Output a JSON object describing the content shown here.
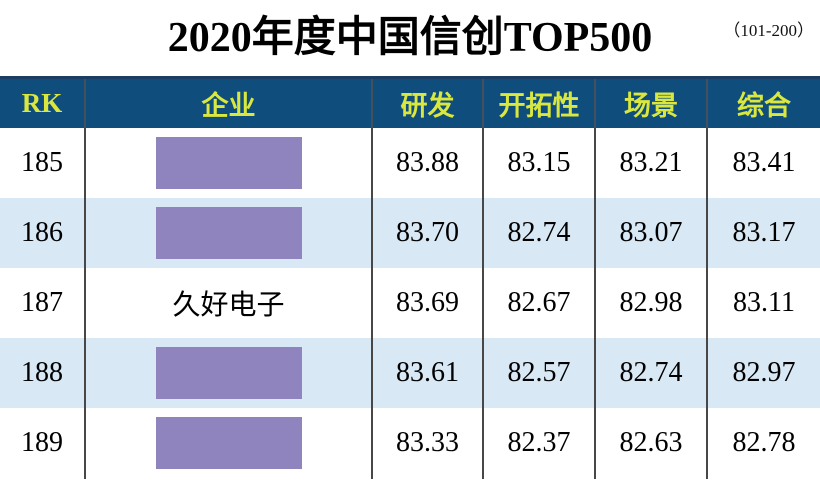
{
  "page": {
    "range_badge": "（101-200）",
    "title": "2020年度中国信创TOP500"
  },
  "colors": {
    "header_bg": "#0f4e7c",
    "header_text": "#d9e73f",
    "header_top_border": "#1c3e63",
    "header_divider": "#44505c",
    "body_divider": "#474747",
    "row_alt_bg": "#d9e8f5",
    "redaction_fill": "#8f84be"
  },
  "table": {
    "columns": [
      {
        "key": "rk",
        "label": "RK"
      },
      {
        "key": "company",
        "label": "企业"
      },
      {
        "key": "rd",
        "label": "研发"
      },
      {
        "key": "pioneer",
        "label": "开拓性"
      },
      {
        "key": "scene",
        "label": "场景"
      },
      {
        "key": "overall",
        "label": "综合"
      }
    ],
    "rows": [
      {
        "rk": "185",
        "company": "",
        "redacted": true,
        "scores": [
          "83.88",
          "83.15",
          "83.21",
          "83.41"
        ]
      },
      {
        "rk": "186",
        "company": "",
        "redacted": true,
        "scores": [
          "83.70",
          "82.74",
          "83.07",
          "83.17"
        ]
      },
      {
        "rk": "187",
        "company": "久好电子",
        "redacted": false,
        "scores": [
          "83.69",
          "82.67",
          "82.98",
          "83.11"
        ]
      },
      {
        "rk": "188",
        "company": "",
        "redacted": true,
        "scores": [
          "83.61",
          "82.57",
          "82.74",
          "82.97"
        ]
      },
      {
        "rk": "189",
        "company": "",
        "redacted": true,
        "scores": [
          "83.33",
          "82.37",
          "82.63",
          "82.78"
        ]
      }
    ]
  },
  "chart_data": {
    "type": "table",
    "title": "2020年度中国信创TOP500",
    "subtitle": "（101-200）",
    "columns": [
      "RK",
      "企业",
      "研发",
      "开拓性",
      "场景",
      "综合"
    ],
    "rows": [
      [
        "185",
        "(redacted)",
        83.88,
        83.15,
        83.21,
        83.41
      ],
      [
        "186",
        "(redacted)",
        83.7,
        82.74,
        83.07,
        83.17
      ],
      [
        "187",
        "久好电子",
        83.69,
        82.67,
        82.98,
        83.11
      ],
      [
        "188",
        "(redacted)",
        83.61,
        82.57,
        82.74,
        82.97
      ],
      [
        "189",
        "(redacted)",
        83.33,
        82.37,
        82.63,
        82.78
      ]
    ]
  }
}
